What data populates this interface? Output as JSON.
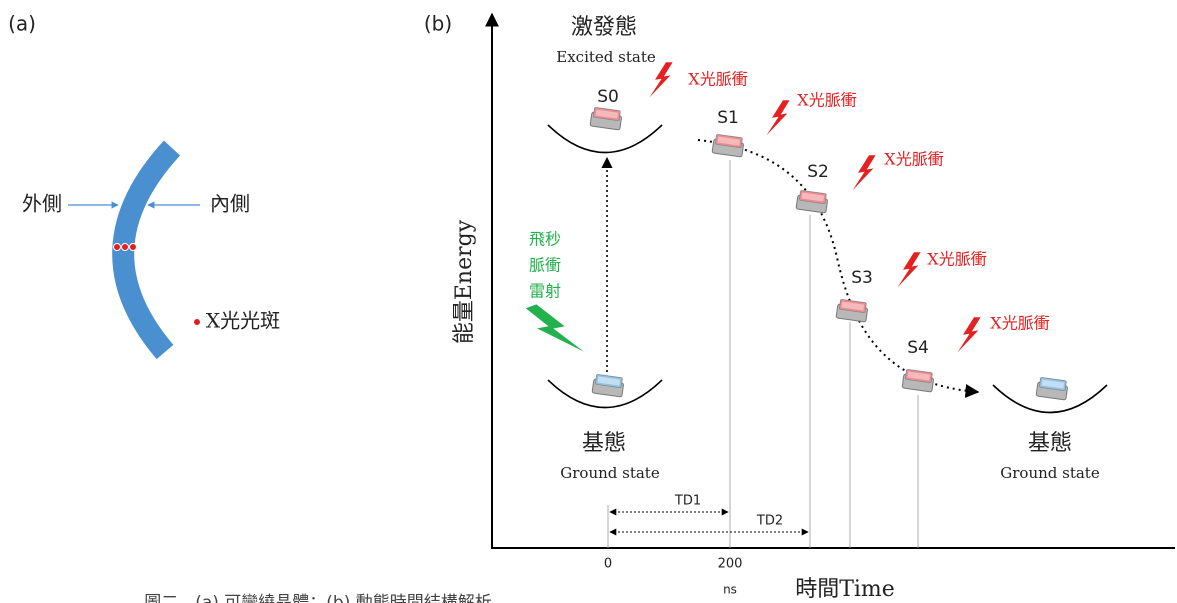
{
  "panel_a": {
    "label": "(a)",
    "outer": "外側",
    "inner": "內側",
    "spot": "X光光斑"
  },
  "panel_b": {
    "label": "(b)",
    "excited": {
      "zh": "激發態",
      "en": "Excited state"
    },
    "ground_left": {
      "zh": "基態",
      "en": "Ground state"
    },
    "ground_right": {
      "zh": "基態",
      "en": "Ground state"
    },
    "states": [
      "S0",
      "S1",
      "S2",
      "S3",
      "S4"
    ],
    "pulses": [
      "X光脈衝",
      "X光脈衝",
      "X光脈衝",
      "X光脈衝",
      "X光脈衝"
    ],
    "laser": [
      "飛秒",
      "脈衝",
      "雷射"
    ],
    "y_axis": "能量Energy",
    "x_axis": "時間Time",
    "x_ticks": [
      "0",
      "200"
    ],
    "x_unit": "ns",
    "delays": [
      "TD1",
      "TD2"
    ]
  },
  "caption": "圖二　(a) 可彎繞晶體；(b) 動態時間結構解析"
}
